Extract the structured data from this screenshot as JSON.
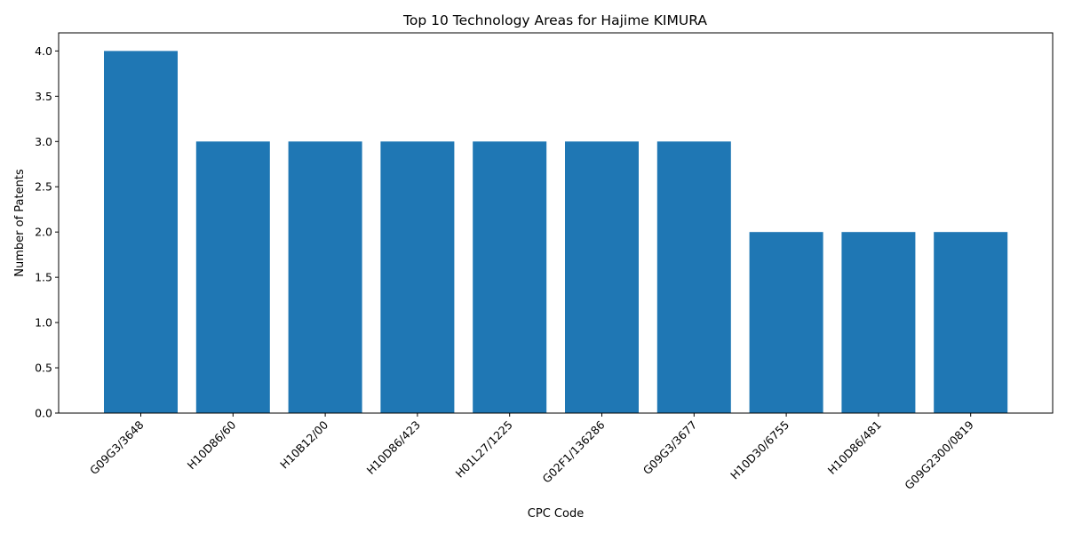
{
  "chart_data": {
    "type": "bar",
    "title": "Top 10 Technology Areas for Hajime KIMURA",
    "xlabel": "CPC Code",
    "ylabel": "Number of Patents",
    "categories": [
      "G09G3/3648",
      "H10D86/60",
      "H10B12/00",
      "H10D86/423",
      "H01L27/1225",
      "G02F1/136286",
      "G09G3/3677",
      "H10D30/6755",
      "H10D86/481",
      "G09G2300/0819"
    ],
    "values": [
      4,
      3,
      3,
      3,
      3,
      3,
      3,
      2,
      2,
      2
    ],
    "ylim": [
      0,
      4.2
    ],
    "yticks": [
      "0.0",
      "0.5",
      "1.0",
      "1.5",
      "2.0",
      "2.5",
      "3.0",
      "3.5",
      "4.0"
    ],
    "grid": false,
    "bar_color": "#1f77b4"
  }
}
